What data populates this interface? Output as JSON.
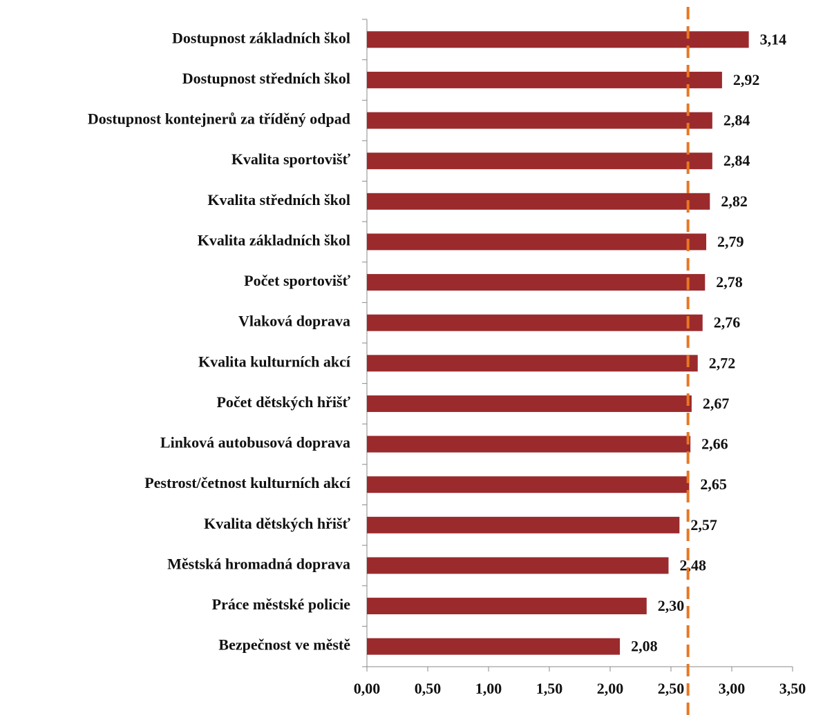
{
  "chart_data": {
    "type": "bar",
    "orientation": "horizontal",
    "categories": [
      "Dostupnost základních škol",
      "Dostupnost středních škol",
      "Dostupnost kontejnerů za tříděný odpad",
      "Kvalita sportovišť",
      "Kvalita středních škol",
      "Kvalita základních škol",
      "Počet sportovišť",
      "Vlaková doprava",
      "Kvalita kulturních akcí",
      "Počet dětských hřišť",
      "Linková autobusová doprava",
      "Pestrost/četnost kulturních akcí",
      "Kvalita dětských hřišť",
      "Městská hromadná doprava",
      "Práce městské policie",
      "Bezpečnost ve městě"
    ],
    "values": [
      3.14,
      2.92,
      2.84,
      2.84,
      2.82,
      2.79,
      2.78,
      2.76,
      2.72,
      2.67,
      2.66,
      2.65,
      2.57,
      2.48,
      2.3,
      2.08
    ],
    "value_labels": [
      "3,14",
      "2,92",
      "2,84",
      "2,84",
      "2,82",
      "2,79",
      "2,78",
      "2,76",
      "2,72",
      "2,67",
      "2,66",
      "2,65",
      "2,57",
      "2,48",
      "2,30",
      "2,08"
    ],
    "color": "#9b2a2d",
    "xlim": [
      0,
      3.5
    ],
    "xticks": [
      {
        "value": 0,
        "label": "0,00"
      },
      {
        "value": 0.5,
        "label": "0,50"
      },
      {
        "value": 1,
        "label": "1,00"
      },
      {
        "value": 1.5,
        "label": "1,50"
      },
      {
        "value": 2,
        "label": "2,00"
      },
      {
        "value": 2.5,
        "label": "2,50"
      },
      {
        "value": 3,
        "label": "3,00"
      },
      {
        "value": 3.5,
        "label": "3,50"
      }
    ],
    "reference_line": 2.64,
    "reference_color": "#e87722"
  }
}
